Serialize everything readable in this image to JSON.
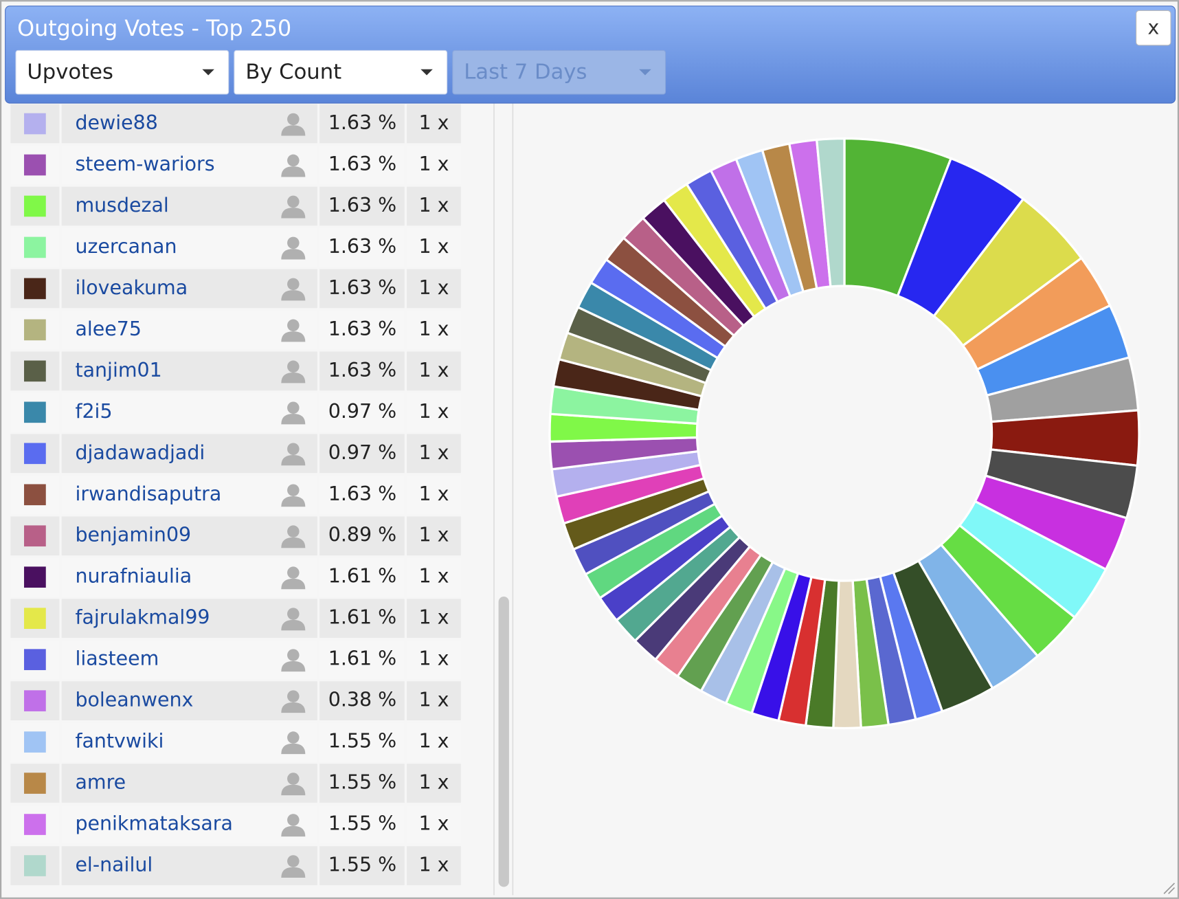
{
  "header": {
    "title": "Outgoing Votes - Top 250",
    "close": "x",
    "dropdowns": [
      {
        "label": "Upvotes",
        "enabled": true
      },
      {
        "label": "By Count",
        "enabled": true
      },
      {
        "label": "Last 7 Days",
        "enabled": false
      }
    ]
  },
  "table": {
    "rows": [
      {
        "color": "#b4b0ee",
        "name": "dewie88",
        "share": "1.63 %",
        "count": "1 x"
      },
      {
        "color": "#9b50b0",
        "name": "steem-wariors",
        "share": "1.63 %",
        "count": "1 x"
      },
      {
        "color": "#80f848",
        "name": "musdezal",
        "share": "1.63 %",
        "count": "1 x"
      },
      {
        "color": "#8cf4a0",
        "name": "uzercanan",
        "share": "1.63 %",
        "count": "1 x"
      },
      {
        "color": "#4a2618",
        "name": "iloveakuma",
        "share": "1.63 %",
        "count": "1 x"
      },
      {
        "color": "#b4b480",
        "name": "alee75",
        "share": "1.63 %",
        "count": "1 x"
      },
      {
        "color": "#5a6048",
        "name": "tanjim01",
        "share": "1.63 %",
        "count": "1 x"
      },
      {
        "color": "#3a88aa",
        "name": "f2i5",
        "share": "0.97 %",
        "count": "1 x"
      },
      {
        "color": "#5a6cf0",
        "name": "djadawadjadi",
        "share": "0.97 %",
        "count": "1 x"
      },
      {
        "color": "#8c5040",
        "name": "irwandisaputra",
        "share": "1.63 %",
        "count": "1 x"
      },
      {
        "color": "#b86088",
        "name": "benjamin09",
        "share": "0.89 %",
        "count": "1 x"
      },
      {
        "color": "#4a1060",
        "name": "nurafniaulia",
        "share": "1.61 %",
        "count": "1 x"
      },
      {
        "color": "#e4e84a",
        "name": "fajrulakmal99",
        "share": "1.61 %",
        "count": "1 x"
      },
      {
        "color": "#5a60e0",
        "name": "liasteem",
        "share": "1.61 %",
        "count": "1 x"
      },
      {
        "color": "#c070e8",
        "name": "boleanwenx",
        "share": "0.38 %",
        "count": "1 x"
      },
      {
        "color": "#a0c4f4",
        "name": "fantvwiki",
        "share": "1.55 %",
        "count": "1 x"
      },
      {
        "color": "#b88848",
        "name": "amre",
        "share": "1.55 %",
        "count": "1 x"
      },
      {
        "color": "#cc70ec",
        "name": "penikmataksara",
        "share": "1.55 %",
        "count": "1 x"
      },
      {
        "color": "#b0d8cc",
        "name": "el-nailul",
        "share": "1.55 %",
        "count": "1 x"
      }
    ]
  },
  "donut": {
    "slices": [
      {
        "color": "#52b435",
        "value": 5.9
      },
      {
        "color": "#2727f0",
        "value": 4.5
      },
      {
        "color": "#dcdc4c",
        "value": 4.5
      },
      {
        "color": "#f29c5a",
        "value": 3.0
      },
      {
        "color": "#4a90f0",
        "value": 3.0
      },
      {
        "color": "#a0a0a0",
        "value": 2.9
      },
      {
        "color": "#8a1a10",
        "value": 3.0
      },
      {
        "color": "#4c4c4c",
        "value": 2.9
      },
      {
        "color": "#c830e0",
        "value": 3.0
      },
      {
        "color": "#80f8f8",
        "value": 3.1
      },
      {
        "color": "#66dd44",
        "value": 2.9
      },
      {
        "color": "#80b4e8",
        "value": 3.0
      },
      {
        "color": "#344e28",
        "value": 3.0
      },
      {
        "color": "#5a78f0",
        "value": 1.5
      },
      {
        "color": "#5a68d0",
        "value": 1.5
      },
      {
        "color": "#7ac04a",
        "value": 1.5
      },
      {
        "color": "#e4d8c0",
        "value": 1.5
      },
      {
        "color": "#4a7a28",
        "value": 1.5
      },
      {
        "color": "#d83030",
        "value": 1.5
      },
      {
        "color": "#3810e8",
        "value": 1.5
      },
      {
        "color": "#88f888",
        "value": 1.5
      },
      {
        "color": "#a8c0e8",
        "value": 1.5
      },
      {
        "color": "#62a050",
        "value": 1.5
      },
      {
        "color": "#e88090",
        "value": 1.5
      },
      {
        "color": "#4a3a78",
        "value": 1.5
      },
      {
        "color": "#52a890",
        "value": 1.5
      },
      {
        "color": "#4a40c8",
        "value": 1.5
      },
      {
        "color": "#60d880",
        "value": 1.5
      },
      {
        "color": "#5050c0",
        "value": 1.5
      },
      {
        "color": "#645a1a",
        "value": 1.5
      },
      {
        "color": "#e040b8",
        "value": 1.5
      },
      {
        "color": "#b4b0ee",
        "value": 1.5
      },
      {
        "color": "#9b50b0",
        "value": 1.5
      },
      {
        "color": "#80f848",
        "value": 1.5
      },
      {
        "color": "#8cf4a0",
        "value": 1.5
      },
      {
        "color": "#4a2618",
        "value": 1.5
      },
      {
        "color": "#b4b480",
        "value": 1.5
      },
      {
        "color": "#5a6048",
        "value": 1.5
      },
      {
        "color": "#3a88aa",
        "value": 1.5
      },
      {
        "color": "#5a6cf0",
        "value": 1.5
      },
      {
        "color": "#8c5040",
        "value": 1.5
      },
      {
        "color": "#b86088",
        "value": 1.5
      },
      {
        "color": "#4a1060",
        "value": 1.5
      },
      {
        "color": "#e4e84a",
        "value": 1.5
      },
      {
        "color": "#5a60e0",
        "value": 1.5
      },
      {
        "color": "#c070e8",
        "value": 1.5
      },
      {
        "color": "#a0c4f4",
        "value": 1.5
      },
      {
        "color": "#b88848",
        "value": 1.5
      },
      {
        "color": "#cc70ec",
        "value": 1.5
      },
      {
        "color": "#b0d8cc",
        "value": 1.5
      }
    ]
  }
}
